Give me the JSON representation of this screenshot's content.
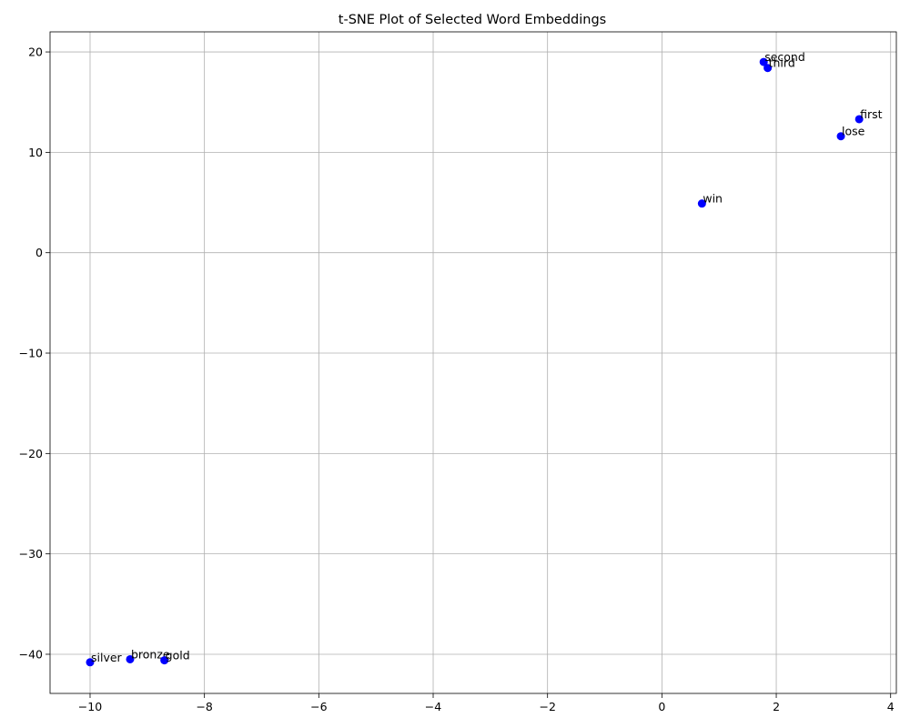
{
  "chart_data": {
    "type": "scatter",
    "title": "t-SNE Plot of Selected Word Embeddings",
    "xlabel": "",
    "ylabel": "",
    "xlim": [
      -10.7,
      4.1
    ],
    "ylim": [
      -43.9,
      22.0
    ],
    "x_ticks": [
      -10,
      -8,
      -6,
      -4,
      -2,
      0,
      2,
      4
    ],
    "x_tick_labels": [
      "−10",
      "−8",
      "−6",
      "−4",
      "−2",
      "0",
      "2",
      "4"
    ],
    "y_ticks": [
      -40,
      -30,
      -20,
      -10,
      0,
      10,
      20
    ],
    "y_tick_labels": [
      "−40",
      "−30",
      "−20",
      "−10",
      "0",
      "10",
      "20"
    ],
    "grid": true,
    "marker_color": "#0000ff",
    "points": [
      {
        "label": "second",
        "x": 1.78,
        "y": 19.0
      },
      {
        "label": "third",
        "x": 1.85,
        "y": 18.4
      },
      {
        "label": "first",
        "x": 3.45,
        "y": 13.3
      },
      {
        "label": "lose",
        "x": 3.13,
        "y": 11.6
      },
      {
        "label": "win",
        "x": 0.7,
        "y": 4.9
      },
      {
        "label": "silver",
        "x": -10.0,
        "y": -40.8
      },
      {
        "label": "bronze",
        "x": -9.3,
        "y": -40.5
      },
      {
        "label": "gold",
        "x": -8.7,
        "y": -40.6
      }
    ]
  }
}
